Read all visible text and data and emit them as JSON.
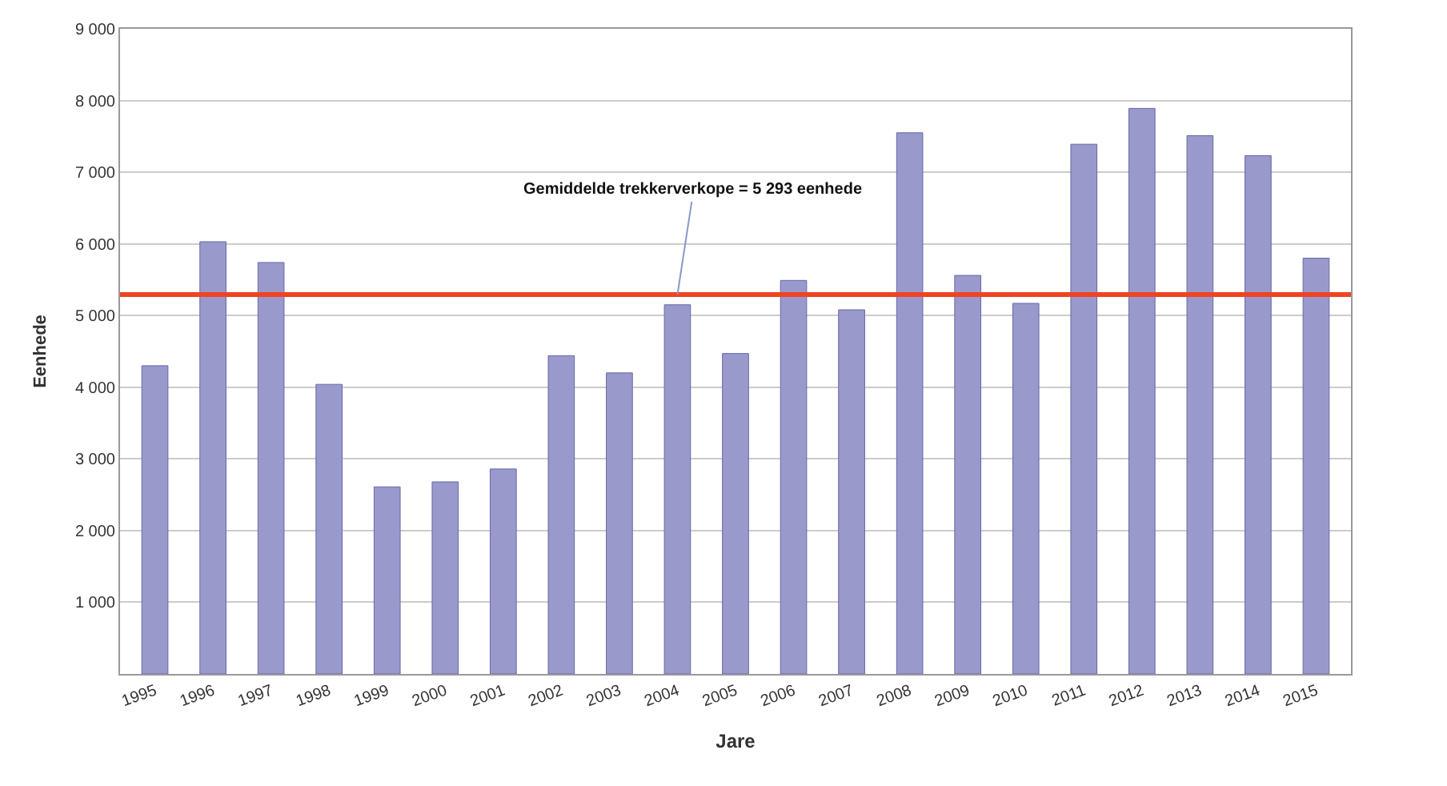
{
  "chart_data": {
    "type": "bar",
    "xlabel": "Jare",
    "ylabel": "Eenhede",
    "categories": [
      "1995",
      "1996",
      "1997",
      "1998",
      "1999",
      "2000",
      "2001",
      "2002",
      "2003",
      "2004",
      "2005",
      "2006",
      "2007",
      "2008",
      "2009",
      "2010",
      "2011",
      "2012",
      "2013",
      "2014",
      "2015"
    ],
    "values": [
      4300,
      6030,
      5740,
      4040,
      2610,
      2680,
      2860,
      4440,
      4200,
      5150,
      4470,
      5490,
      5080,
      7550,
      5560,
      5170,
      7390,
      7890,
      7510,
      7230,
      5800
    ],
    "color": "#9999cc",
    "ylim": [
      0,
      9000
    ],
    "yticks": [
      {
        "value": 0,
        "label": null
      },
      {
        "value": 1000,
        "label": "1 000"
      },
      {
        "value": 2000,
        "label": "2 000"
      },
      {
        "value": 3000,
        "label": "3 000"
      },
      {
        "value": 4000,
        "label": "4 000"
      },
      {
        "value": 5000,
        "label": "5 000"
      },
      {
        "value": 6000,
        "label": "6 000"
      },
      {
        "value": 7000,
        "label": "7 000"
      },
      {
        "value": 8000,
        "label": "8 000"
      },
      {
        "value": 9000,
        "label": "9 000"
      }
    ],
    "grid": "y",
    "ref_lines": [
      {
        "axis": "y",
        "value": 5293,
        "color": "#ee4422"
      }
    ],
    "annotations": [
      {
        "text": "Gemiddelde trekkerverkope = 5 293 eenhede",
        "x": "2004",
        "y": 5293
      }
    ]
  }
}
